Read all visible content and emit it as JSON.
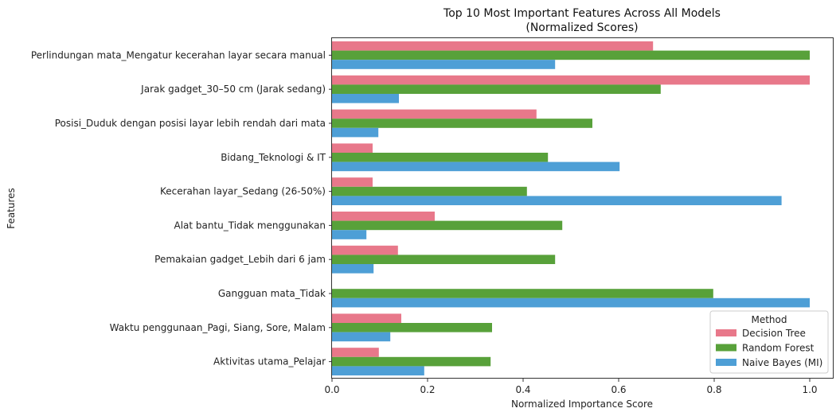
{
  "chart_data": {
    "type": "bar",
    "orientation": "horizontal",
    "title": "Top 10 Most Important Features Across All Models",
    "subtitle": "(Normalized Scores)",
    "xlabel": "Normalized Importance Score",
    "ylabel": "Features",
    "xlim": [
      0,
      1.05
    ],
    "xticks": [
      "0.0",
      "0.2",
      "0.4",
      "0.6",
      "0.8",
      "1.0"
    ],
    "grid": false,
    "legend": {
      "title": "Method",
      "position": "bottom-right"
    },
    "categories": [
      "Perlindungan mata_Mengatur kecerahan layar secara manual",
      "Jarak gadget_30–50 cm (Jarak sedang)",
      "Posisi_Duduk dengan posisi layar lebih rendah dari mata",
      "Bidang_Teknologi & IT",
      "Kecerahan layar_Sedang (26-50%)",
      "Alat bantu_Tidak menggunakan",
      "Pemakaian gadget_Lebih dari 6 jam",
      "Gangguan mata_Tidak",
      "Waktu penggunaan_Pagi, Siang, Sore, Malam",
      "Aktivitas utama_Pelajar"
    ],
    "series": [
      {
        "name": "Decision Tree",
        "color": "#e8788a",
        "values": [
          0.672,
          1.0,
          0.428,
          0.085,
          0.085,
          0.215,
          0.138,
          0.0,
          0.145,
          0.098
        ]
      },
      {
        "name": "Random Forest",
        "color": "#58a13a",
        "values": [
          1.0,
          0.688,
          0.545,
          0.452,
          0.408,
          0.482,
          0.467,
          0.798,
          0.335,
          0.332
        ]
      },
      {
        "name": "Naive Bayes (MI)",
        "color": "#4e9fd6",
        "values": [
          0.467,
          0.14,
          0.097,
          0.602,
          0.941,
          0.072,
          0.087,
          1.0,
          0.122,
          0.193
        ]
      }
    ]
  }
}
